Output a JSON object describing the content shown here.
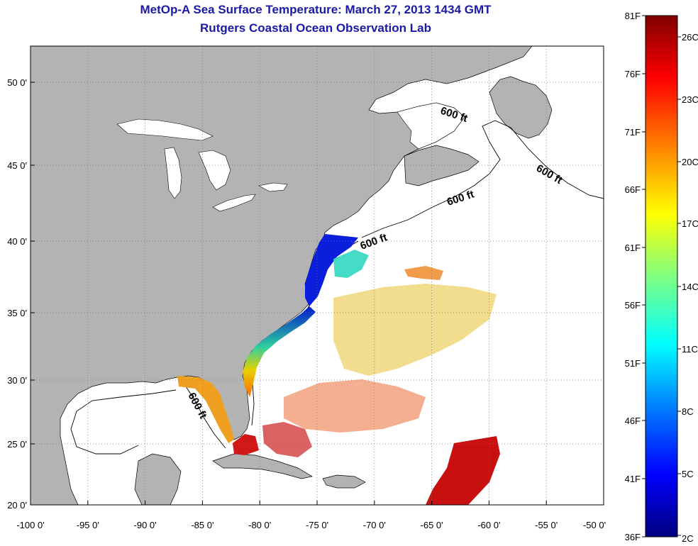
{
  "header": {
    "title_line1": "MetOp-A Sea Surface Temperature:  March 27, 2013 1434 GMT",
    "title_line2": "Rutgers Coastal Ocean Observation Lab"
  },
  "map": {
    "lon_ticks": [
      "-100 0'",
      "-95 0'",
      "-90 0'",
      "-85 0'",
      "-80 0'",
      "-75 0'",
      "-70 0'",
      "-65 0'",
      "-60 0'",
      "-55 0'",
      "-50 0'"
    ],
    "lat_ticks": [
      "20 0'",
      "25 0'",
      "30 0'",
      "35 0'",
      "40 0'",
      "45 0'",
      "50 0'"
    ],
    "contour_label": "600 ft",
    "colors": {
      "land": "#b3b3b3",
      "water": "#ffffff",
      "grid": "#888888"
    }
  },
  "colorbar": {
    "fahrenheit_labels": [
      "81F",
      "76F",
      "71F",
      "66F",
      "61F",
      "56F",
      "51F",
      "46F",
      "41F",
      "36F"
    ],
    "celsius_labels": [
      "26C",
      "23C",
      "20C",
      "17C",
      "14C",
      "11C",
      "8C",
      "5C",
      "2C"
    ],
    "colormap": [
      "#000080",
      "#0000ff",
      "#0080ff",
      "#00ffff",
      "#80ff80",
      "#ffff00",
      "#ff8000",
      "#ff0000",
      "#800000"
    ]
  }
}
